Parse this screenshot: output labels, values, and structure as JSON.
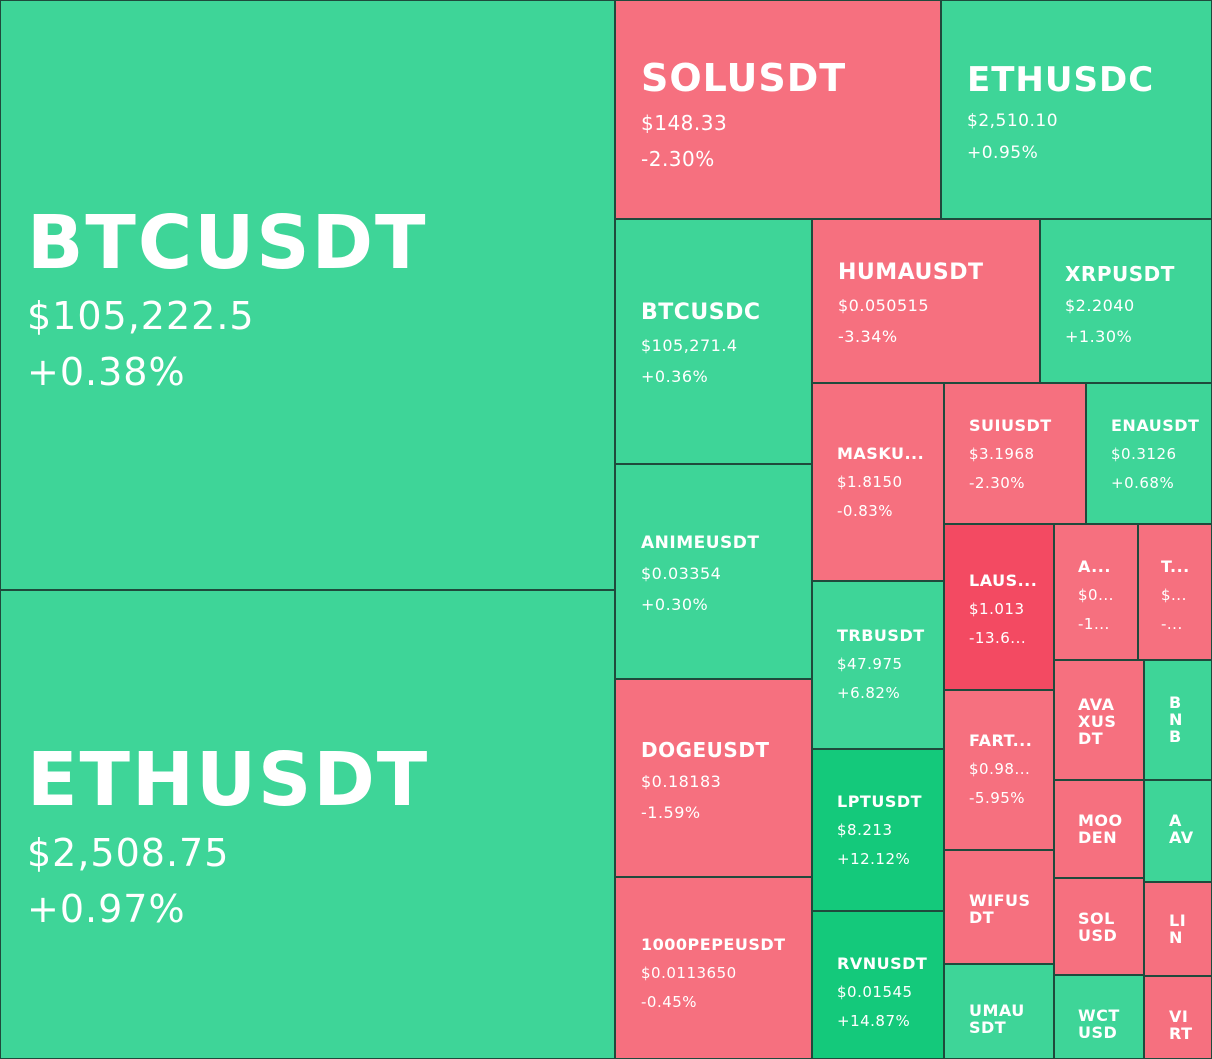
{
  "colors": {
    "up": "#3ed598",
    "down": "#f6707f",
    "strong_up": "#14c97b",
    "strong_down": "#f34a62",
    "border": "#1f4a3c",
    "text": "#ffffff"
  },
  "tiles": {
    "btcusdt": {
      "symbol": "BTCUSDT",
      "price": "$105,222.5",
      "change": "+0.38%"
    },
    "ethusdt": {
      "symbol": "ETHUSDT",
      "price": "$2,508.75",
      "change": "+0.97%"
    },
    "solusdt": {
      "symbol": "SOLUSDT",
      "price": "$148.33",
      "change": "-2.30%"
    },
    "ethusdc": {
      "symbol": "ETHUSDC",
      "price": "$2,510.10",
      "change": "+0.95%"
    },
    "btcusdc": {
      "symbol": "BTCUSDC",
      "price": "$105,271.4",
      "change": "+0.36%"
    },
    "humausdt": {
      "symbol": "HUMAUSDT",
      "price": "$0.050515",
      "change": "-3.34%"
    },
    "xrpusdt": {
      "symbol": "XRPUSDT",
      "price": "$2.2040",
      "change": "+1.30%"
    },
    "masku": {
      "symbol": "MASKU...",
      "price": "$1.8150",
      "change": "-0.83%"
    },
    "suiusdt": {
      "symbol": "SUIUSDT",
      "price": "$3.1968",
      "change": "-2.30%"
    },
    "enausdt": {
      "symbol": "ENAUSDT",
      "price": "$0.3126",
      "change": "+0.68%"
    },
    "animeusdt": {
      "symbol": "ANIMEUSDT",
      "price": "$0.03354",
      "change": "+0.30%"
    },
    "laus": {
      "symbol": "LAUS...",
      "price": "$1.013",
      "change": "-13.6..."
    },
    "a_dots": {
      "symbol": "A...",
      "price": "$0...",
      "change": "-1..."
    },
    "t_dots": {
      "symbol": "T...",
      "price": "$...",
      "change": "-..."
    },
    "trbusdt": {
      "symbol": "TRBUSDT",
      "price": "$47.975",
      "change": "+6.82%"
    },
    "dogeusdt": {
      "symbol": "DOGEUSDT",
      "price": "$0.18183",
      "change": "-1.59%"
    },
    "fart": {
      "symbol": "FART...",
      "price": "$0.98...",
      "change": "-5.95%"
    },
    "avaxusdt": {
      "symbol": "AVA\nXUS\nDT"
    },
    "bnb": {
      "symbol": "B\nN\nB"
    },
    "lptusdt": {
      "symbol": "LPTUSDT",
      "price": "$8.213",
      "change": "+12.12%"
    },
    "moodeng": {
      "symbol": "MOO\nDEN"
    },
    "aav": {
      "symbol": "A\nAV"
    },
    "pepe": {
      "symbol": "1000PEPEUSDT",
      "price": "$0.0113650",
      "change": "-0.45%"
    },
    "wifusdt": {
      "symbol": "WIFUS\nDT"
    },
    "solusd": {
      "symbol": "SOL\nUSD"
    },
    "lin": {
      "symbol": "LI\nN"
    },
    "rvnusdt": {
      "symbol": "RVNUSDT",
      "price": "$0.01545",
      "change": "+14.87%"
    },
    "umausdt": {
      "symbol": "UMAU\nSDT"
    },
    "wctusd": {
      "symbol": "WCT\nUSD"
    },
    "virt": {
      "symbol": "VI\nRT"
    }
  }
}
